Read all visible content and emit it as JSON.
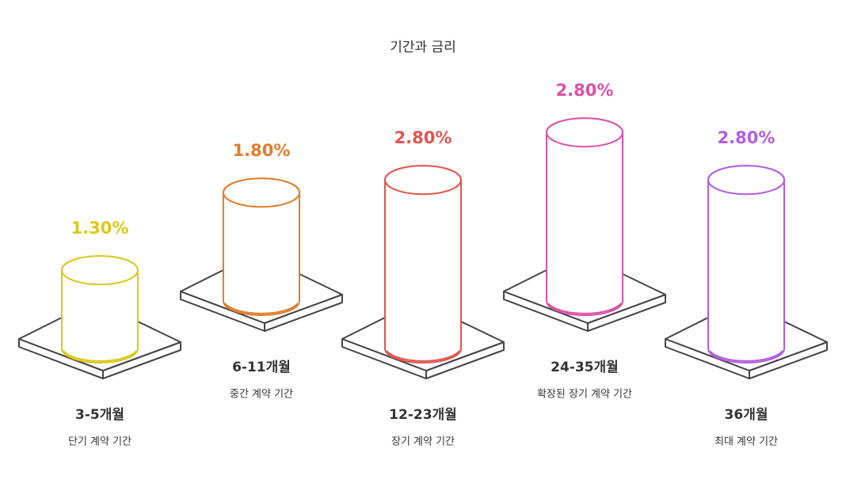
{
  "chart_data": {
    "type": "cylinder",
    "title": "기간과 금리",
    "categories": [
      "3-5개월",
      "6-11개월",
      "12-23개월",
      "24-35개월",
      "36개월"
    ],
    "descriptions": [
      "단기 계약 기간",
      "중간 계약 기간",
      "장기 계약 기간",
      "확장된 장기 계약 기간",
      "최대 계약 기간"
    ],
    "values": [
      1.3,
      1.8,
      2.8,
      2.8,
      2.8
    ],
    "value_labels": [
      "1.30%",
      "1.80%",
      "2.80%",
      "2.80%",
      "2.80%"
    ],
    "colors": [
      "#d9c81b",
      "#e07d2c",
      "#e0554f",
      "#d852a8",
      "#b25de0"
    ]
  }
}
